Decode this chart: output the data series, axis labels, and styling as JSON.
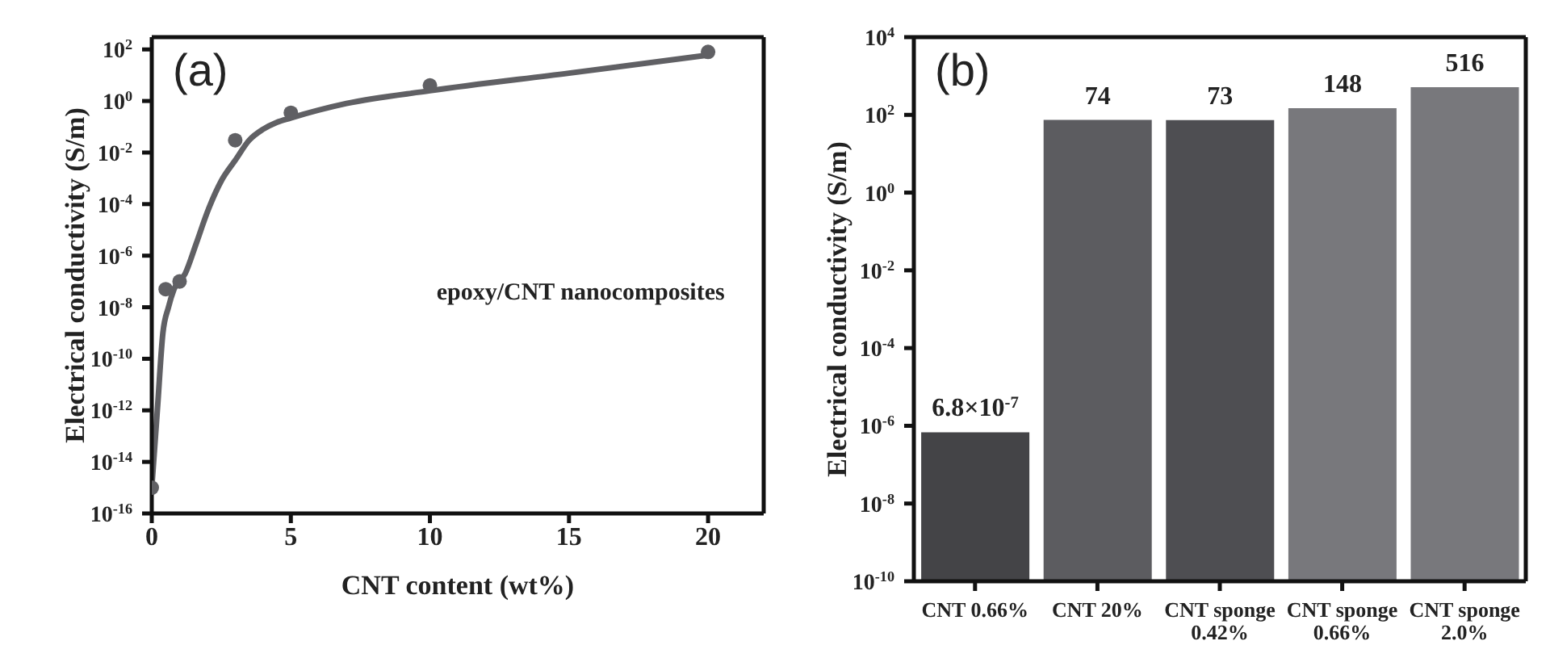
{
  "chart_data": [
    {
      "type": "scatter",
      "title": "(a)",
      "xlabel": "CNT content (wt%)",
      "ylabel": "Electrical conductivity (S/m)",
      "annotations": [
        "epoxy/CNT nanocomposites"
      ],
      "log": "y",
      "grid": false,
      "legend": false,
      "x": [
        0,
        0.5,
        1,
        3,
        5,
        10,
        20
      ],
      "series": [
        {
          "type": "scatter",
          "marker": "circle",
          "color": "#606064",
          "values": [
            1e-15,
            5e-08,
            1e-07,
            0.03,
            0.35,
            4,
            80
          ]
        },
        {
          "type": "line",
          "marker": "none",
          "color": "#606064",
          "x": [
            0,
            0.2,
            0.4,
            0.6,
            0.8,
            1.2,
            1.6,
            2,
            2.5,
            3,
            3.5,
            4,
            4.5,
            5,
            7,
            10,
            15,
            20
          ],
          "values": [
            1e-15,
            1e-12,
            1e-09,
            1e-08,
            5e-08,
            2e-07,
            3e-06,
            5e-05,
            0.0008,
            0.005,
            0.03,
            0.08,
            0.15,
            0.22,
            0.8,
            2.5,
            12,
            60
          ]
        }
      ],
      "xlim": [
        0,
        22
      ],
      "xticks": [
        0,
        5,
        10,
        15,
        20
      ],
      "ylim": [
        1e-16,
        300
      ],
      "yticks": [
        {
          "value": 1e-16,
          "label": "10$^{-16}$"
        },
        {
          "value": 1e-14,
          "label": "10$^{-14}$"
        },
        {
          "value": 1e-12,
          "label": "10$^{-12}$"
        },
        {
          "value": 1e-10,
          "label": "10$^{-10}$"
        },
        {
          "value": 1e-08,
          "label": "10$^{-8}$"
        },
        {
          "value": 1e-06,
          "label": "10$^{-6}$"
        },
        {
          "value": 0.0001,
          "label": "10$^{-4}$"
        },
        {
          "value": 0.01,
          "label": "10$^{-2}$"
        },
        {
          "value": 1,
          "label": "10$^{0}$"
        },
        {
          "value": 100,
          "label": "10$^{2}$"
        }
      ]
    },
    {
      "type": "bar",
      "title": "(b)",
      "ylabel": "Electrical conductivity (S/m)",
      "log": "y",
      "grid": false,
      "legend": false,
      "categories": [
        "CNT 0.66%",
        "CNT 20%",
        "CNT sponge 0.42%",
        "CNT sponge 0.66%",
        "CNT sponge 2.0%"
      ],
      "values": [
        6.8e-07,
        74,
        73,
        148,
        516
      ],
      "value_labels": [
        "6.8×10$^{-7}$",
        "74",
        "73",
        "148",
        "516"
      ],
      "colors": [
        "#444447",
        "#5c5c60",
        "#4e4e52",
        "#78787c",
        "#78787c"
      ],
      "ylim": [
        1e-10,
        10000
      ],
      "yticks": [
        {
          "value": 1e-10,
          "label": "10$^{-10}$"
        },
        {
          "value": 1e-08,
          "label": "10$^{-8}$"
        },
        {
          "value": 1e-06,
          "label": "10$^{-6}$"
        },
        {
          "value": 0.0001,
          "label": "10$^{-4}$"
        },
        {
          "value": 0.01,
          "label": "10$^{-2}$"
        },
        {
          "value": 1,
          "label": "10$^{0}$"
        },
        {
          "value": 100,
          "label": "10$^{2}$"
        },
        {
          "value": 10000,
          "label": "10$^{4}$"
        }
      ]
    }
  ]
}
